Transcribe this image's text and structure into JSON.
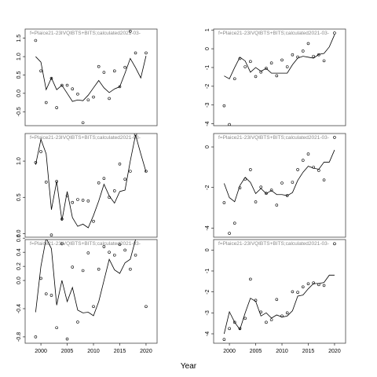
{
  "xlabel": "Year",
  "chart_data": [
    {
      "type": "combo",
      "title": "f=Plaice21-23IVQIBTS+BITS;calculated2021-03-",
      "x": [
        1999,
        2000,
        2001,
        2002,
        2003,
        2004,
        2005,
        2006,
        2007,
        2008,
        2009,
        2010,
        2011,
        2012,
        2013,
        2014,
        2015,
        2016,
        2017,
        2018,
        2019,
        2020
      ],
      "xlim": [
        1997,
        2022.1
      ],
      "ylim": [
        -0.88,
        1.75
      ],
      "yticks": [
        -0.5,
        {
          "value": 0,
          "label": "0.0"
        },
        0.5,
        {
          "value": 1,
          "label": "1.0"
        },
        1.5
      ],
      "series": [
        {
          "type": "scatter",
          "color": "#000000",
          "values": [
            1.44,
            0.61,
            -0.25,
            0.41,
            -0.39,
            0.22,
            0.22,
            0.12,
            -0.02,
            -0.8,
            -0.18,
            -0.1,
            0.73,
            0.57,
            -0.14,
            0.61,
            0.18,
            0.71,
            1.69,
            1.1,
            null,
            1.1
          ]
        },
        {
          "type": "line",
          "color": "#000000",
          "values": [
            1.0,
            0.85,
            0.1,
            0.42,
            0.1,
            0.22,
            0.0,
            -0.22,
            -0.18,
            -0.2,
            -0.05,
            0.15,
            0.35,
            0.15,
            0.02,
            0.12,
            0.18,
            0.55,
            0.95,
            0.7,
            0.42,
            1.02
          ]
        }
      ]
    },
    {
      "type": "combo",
      "title": "f=Plaice21-23IVQIBTS+BITS;calculated2021-03-",
      "x": [
        1999,
        2000,
        2001,
        2002,
        2003,
        2004,
        2005,
        2006,
        2007,
        2008,
        2009,
        2010,
        2011,
        2012,
        2013,
        2014,
        2015,
        2016,
        2017,
        2018,
        2019,
        2020
      ],
      "xlim": [
        1997,
        2022.1
      ],
      "ylim": [
        -0.05,
        1.38
      ],
      "yticks": [
        {
          "value": 0,
          "label": "0.0"
        },
        0.5,
        {
          "value": 1,
          "label": "1.0"
        }
      ],
      "series": [
        {
          "type": "scatter",
          "color": "#000000",
          "values": [
            0.98,
            1.13,
            0.71,
            -0.02,
            0.72,
            0.2,
            0.52,
            0.43,
            0.47,
            0.46,
            0.45,
            0.17,
            0.7,
            0.76,
            0.5,
            0.59,
            0.96,
            0.75,
            0.86,
            1.37,
            null,
            0.86
          ]
        },
        {
          "type": "line",
          "color": "#000000",
          "values": [
            0.95,
            1.3,
            1.1,
            0.33,
            0.72,
            0.18,
            0.58,
            0.22,
            0.1,
            0.13,
            0.08,
            0.25,
            0.45,
            0.68,
            0.52,
            0.42,
            0.58,
            0.6,
            1.0,
            1.36,
            1.1,
            0.85
          ]
        }
      ]
    },
    {
      "type": "combo",
      "title": "f=Plaice21-23IVQIBTS+BITS;calculated2021-03-",
      "x": [
        1999,
        2000,
        2001,
        2002,
        2003,
        2004,
        2005,
        2006,
        2007,
        2008,
        2009,
        2010,
        2011,
        2012,
        2013,
        2014,
        2015,
        2016,
        2017,
        2018,
        2019,
        2020
      ],
      "xlim": [
        1997,
        2022.1
      ],
      "ylim": [
        -0.89,
        0.58
      ],
      "yticks": [
        -0.8,
        -0.4,
        {
          "value": 0,
          "label": "0.0"
        },
        0.2,
        0.4,
        0.6
      ],
      "xticks": [
        2000,
        2005,
        2010,
        2015,
        2020
      ],
      "series": [
        {
          "type": "scatter",
          "color": "#000000",
          "values": [
            -0.8,
            0.03,
            -0.19,
            -0.21,
            -0.67,
            0.52,
            -0.83,
            0.19,
            -0.59,
            0.14,
            0.39,
            -0.37,
            0.16,
            0.48,
            0.4,
            0.36,
            0.51,
            0.43,
            0.16,
            0.36,
            null,
            -0.37
          ]
        },
        {
          "type": "line",
          "color": "#000000",
          "values": [
            -0.45,
            0.2,
            0.6,
            0.45,
            -0.35,
            0.0,
            -0.3,
            -0.1,
            -0.42,
            -0.46,
            -0.45,
            -0.5,
            -0.3,
            0.0,
            0.3,
            0.15,
            0.1,
            0.25,
            0.3,
            0.58,
            null,
            null
          ]
        }
      ]
    },
    {
      "type": "combo",
      "title": "f=Plaice21-23IVQIBTS+BITS;calculated2021-03-",
      "x": [
        1999,
        2000,
        2001,
        2002,
        2003,
        2004,
        2005,
        2006,
        2007,
        2008,
        2009,
        2010,
        2011,
        2012,
        2013,
        2014,
        2015,
        2016,
        2017,
        2018,
        2019,
        2020
      ],
      "xlim": [
        1997,
        2022.1
      ],
      "ylim": [
        -4.1,
        1.05
      ],
      "yticks": [
        -4,
        -3,
        -2,
        -1,
        0,
        1
      ],
      "series": [
        {
          "type": "scatter",
          "color": "#000000",
          "values": [
            -3.04,
            -4.04,
            -1.6,
            -0.52,
            -0.96,
            -0.68,
            -1.48,
            -1.24,
            -1.04,
            -0.76,
            -1.44,
            -0.6,
            -0.96,
            -0.32,
            -0.44,
            -0.12,
            0.28,
            -0.4,
            -0.32,
            -0.64,
            null,
            0.84
          ]
        },
        {
          "type": "line",
          "color": "#000000",
          "values": [
            -1.45,
            -1.6,
            -1.0,
            -0.45,
            -0.65,
            -1.25,
            -1.0,
            -1.2,
            -1.05,
            -1.3,
            -1.3,
            -1.3,
            -1.3,
            -0.85,
            -0.5,
            -0.4,
            -0.45,
            -0.5,
            -0.3,
            -0.25,
            0.1,
            0.75
          ]
        }
      ]
    },
    {
      "type": "combo",
      "title": "f=Plaice21-23IVQIBTS+BITS;calculated2021-03-",
      "x": [
        1999,
        2000,
        2001,
        2002,
        2003,
        2004,
        2005,
        2006,
        2007,
        2008,
        2009,
        2010,
        2011,
        2012,
        2013,
        2014,
        2015,
        2016,
        2017,
        2018,
        2019,
        2020
      ],
      "xlim": [
        1997,
        2022.1
      ],
      "ylim": [
        -4.45,
        0.66
      ],
      "yticks": [
        -4,
        -2,
        0
      ],
      "series": [
        {
          "type": "scatter",
          "color": "#000000",
          "values": [
            -2.75,
            -4.26,
            -3.76,
            -2.02,
            -1.59,
            -1.12,
            -2.71,
            -1.98,
            -2.29,
            -2.13,
            -2.87,
            -1.78,
            -2.4,
            -1.74,
            -1.12,
            -0.66,
            -0.35,
            -1.0,
            -1.16,
            -1.63,
            null,
            0.47
          ]
        },
        {
          "type": "line",
          "color": "#000000",
          "values": [
            -1.8,
            -2.5,
            -2.7,
            -1.9,
            -1.5,
            -1.75,
            -2.3,
            -2.05,
            -2.3,
            -2.15,
            -2.35,
            -2.35,
            -2.4,
            -2.25,
            -1.65,
            -1.25,
            -0.95,
            -1.05,
            -1.1,
            -0.75,
            -0.75,
            -0.15
          ]
        }
      ]
    },
    {
      "type": "combo",
      "title": "f=Plaice21-23IVQIBTS+BITS;calculated2021-03-",
      "x": [
        1999,
        2000,
        2001,
        2002,
        2003,
        2004,
        2005,
        2006,
        2007,
        2008,
        2009,
        2010,
        2011,
        2012,
        2013,
        2014,
        2015,
        2016,
        2017,
        2018,
        2019,
        2020
      ],
      "xlim": [
        1997,
        2022.1
      ],
      "ylim": [
        -4.45,
        0.5
      ],
      "yticks": [
        -4,
        -3,
        -2,
        -1,
        0
      ],
      "xticks": [
        2000,
        2005,
        2010,
        2015,
        2020
      ],
      "series": [
        {
          "type": "scatter",
          "color": "#000000",
          "values": [
            -4.27,
            -3.75,
            -3.45,
            -3.75,
            -3.26,
            -1.39,
            -2.4,
            -2.96,
            -3.45,
            -3.33,
            -2.36,
            -3.15,
            -3.0,
            -1.99,
            -2.02,
            -1.76,
            -1.61,
            -1.57,
            -1.65,
            -1.69,
            null,
            0.3
          ]
        },
        {
          "type": "line",
          "color": "#000000",
          "values": [
            -4.0,
            -2.95,
            -3.45,
            -3.8,
            -3.0,
            -2.3,
            -2.45,
            -3.15,
            -3.0,
            -3.25,
            -3.1,
            -3.2,
            -3.15,
            -2.9,
            -2.2,
            -2.15,
            -1.85,
            -1.6,
            -1.6,
            -1.55,
            -1.2,
            -1.2
          ]
        }
      ]
    }
  ]
}
